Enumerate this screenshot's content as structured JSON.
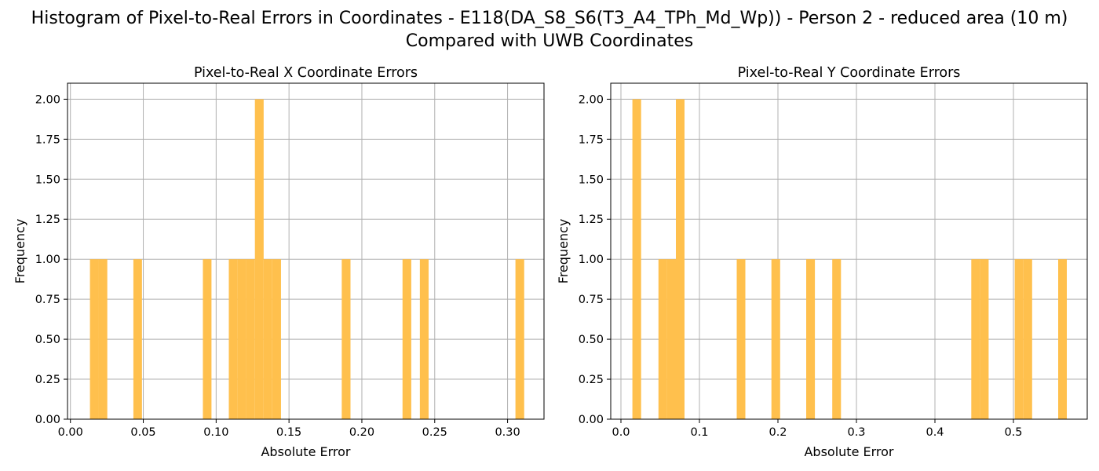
{
  "figure": {
    "title_line1": "Histogram of Pixel-to-Real Errors in Coordinates - E118(DA_S8_S6(T3_A4_TPh_Md_Wp)) - Person 2 - reduced area (10 m)",
    "title_line2": "Compared with UWB Coordinates"
  },
  "chart_data": [
    {
      "type": "bar",
      "subtype": "histogram",
      "title": "Pixel-to-Real X Coordinate Errors",
      "xlabel": "Absolute Error",
      "ylabel": "Frequency",
      "bar_color": "#FFC04D",
      "grid": true,
      "xlim": [
        -0.002,
        0.325
      ],
      "ylim": [
        0,
        2.1
      ],
      "xticks": [
        0.0,
        0.05,
        0.1,
        0.15,
        0.2,
        0.25,
        0.3
      ],
      "xtick_labels": [
        "0.00",
        "0.05",
        "0.10",
        "0.15",
        "0.20",
        "0.25",
        "0.30"
      ],
      "yticks": [
        0.0,
        0.25,
        0.5,
        0.75,
        1.0,
        1.25,
        1.5,
        1.75,
        2.0
      ],
      "ytick_labels": [
        "0.00",
        "0.25",
        "0.50",
        "0.75",
        "1.00",
        "1.25",
        "1.50",
        "1.75",
        "2.00"
      ],
      "bins": [
        {
          "x0": 0.0134,
          "x1": 0.0193,
          "count": 1
        },
        {
          "x0": 0.0193,
          "x1": 0.0253,
          "count": 1
        },
        {
          "x0": 0.0432,
          "x1": 0.0491,
          "count": 1
        },
        {
          "x0": 0.0909,
          "x1": 0.0968,
          "count": 1
        },
        {
          "x0": 0.1087,
          "x1": 0.1147,
          "count": 1
        },
        {
          "x0": 0.1147,
          "x1": 0.1206,
          "count": 1
        },
        {
          "x0": 0.1206,
          "x1": 0.1266,
          "count": 1
        },
        {
          "x0": 0.1266,
          "x1": 0.1326,
          "count": 2
        },
        {
          "x0": 0.1326,
          "x1": 0.1385,
          "count": 1
        },
        {
          "x0": 0.1385,
          "x1": 0.1445,
          "count": 1
        },
        {
          "x0": 0.1862,
          "x1": 0.1922,
          "count": 1
        },
        {
          "x0": 0.2279,
          "x1": 0.2339,
          "count": 1
        },
        {
          "x0": 0.2398,
          "x1": 0.2458,
          "count": 1
        },
        {
          "x0": 0.3054,
          "x1": 0.3114,
          "count": 1
        }
      ]
    },
    {
      "type": "bar",
      "subtype": "histogram",
      "title": "Pixel-to-Real Y Coordinate Errors",
      "xlabel": "Absolute Error",
      "ylabel": "Frequency",
      "bar_color": "#FFC04D",
      "grid": true,
      "xlim": [
        -0.013,
        0.594
      ],
      "ylim": [
        0,
        2.1
      ],
      "xticks": [
        0.0,
        0.1,
        0.2,
        0.3,
        0.4,
        0.5
      ],
      "xtick_labels": [
        "0.0",
        "0.1",
        "0.2",
        "0.3",
        "0.4",
        "0.5"
      ],
      "yticks": [
        0.0,
        0.25,
        0.5,
        0.75,
        1.0,
        1.25,
        1.5,
        1.75,
        2.0
      ],
      "ytick_labels": [
        "0.00",
        "0.25",
        "0.50",
        "0.75",
        "1.00",
        "1.25",
        "1.50",
        "1.75",
        "2.00"
      ],
      "bins": [
        {
          "x0": 0.0146,
          "x1": 0.0257,
          "count": 2
        },
        {
          "x0": 0.0478,
          "x1": 0.0589,
          "count": 1
        },
        {
          "x0": 0.0589,
          "x1": 0.07,
          "count": 1
        },
        {
          "x0": 0.07,
          "x1": 0.081,
          "count": 2
        },
        {
          "x0": 0.1475,
          "x1": 0.1585,
          "count": 1
        },
        {
          "x0": 0.1917,
          "x1": 0.2028,
          "count": 1
        },
        {
          "x0": 0.236,
          "x1": 0.2471,
          "count": 1
        },
        {
          "x0": 0.2692,
          "x1": 0.2803,
          "count": 1
        },
        {
          "x0": 0.4463,
          "x1": 0.4574,
          "count": 1
        },
        {
          "x0": 0.4574,
          "x1": 0.4684,
          "count": 1
        },
        {
          "x0": 0.5016,
          "x1": 0.5127,
          "count": 1
        },
        {
          "x0": 0.5127,
          "x1": 0.5238,
          "count": 1
        },
        {
          "x0": 0.557,
          "x1": 0.568,
          "count": 1
        }
      ]
    }
  ]
}
